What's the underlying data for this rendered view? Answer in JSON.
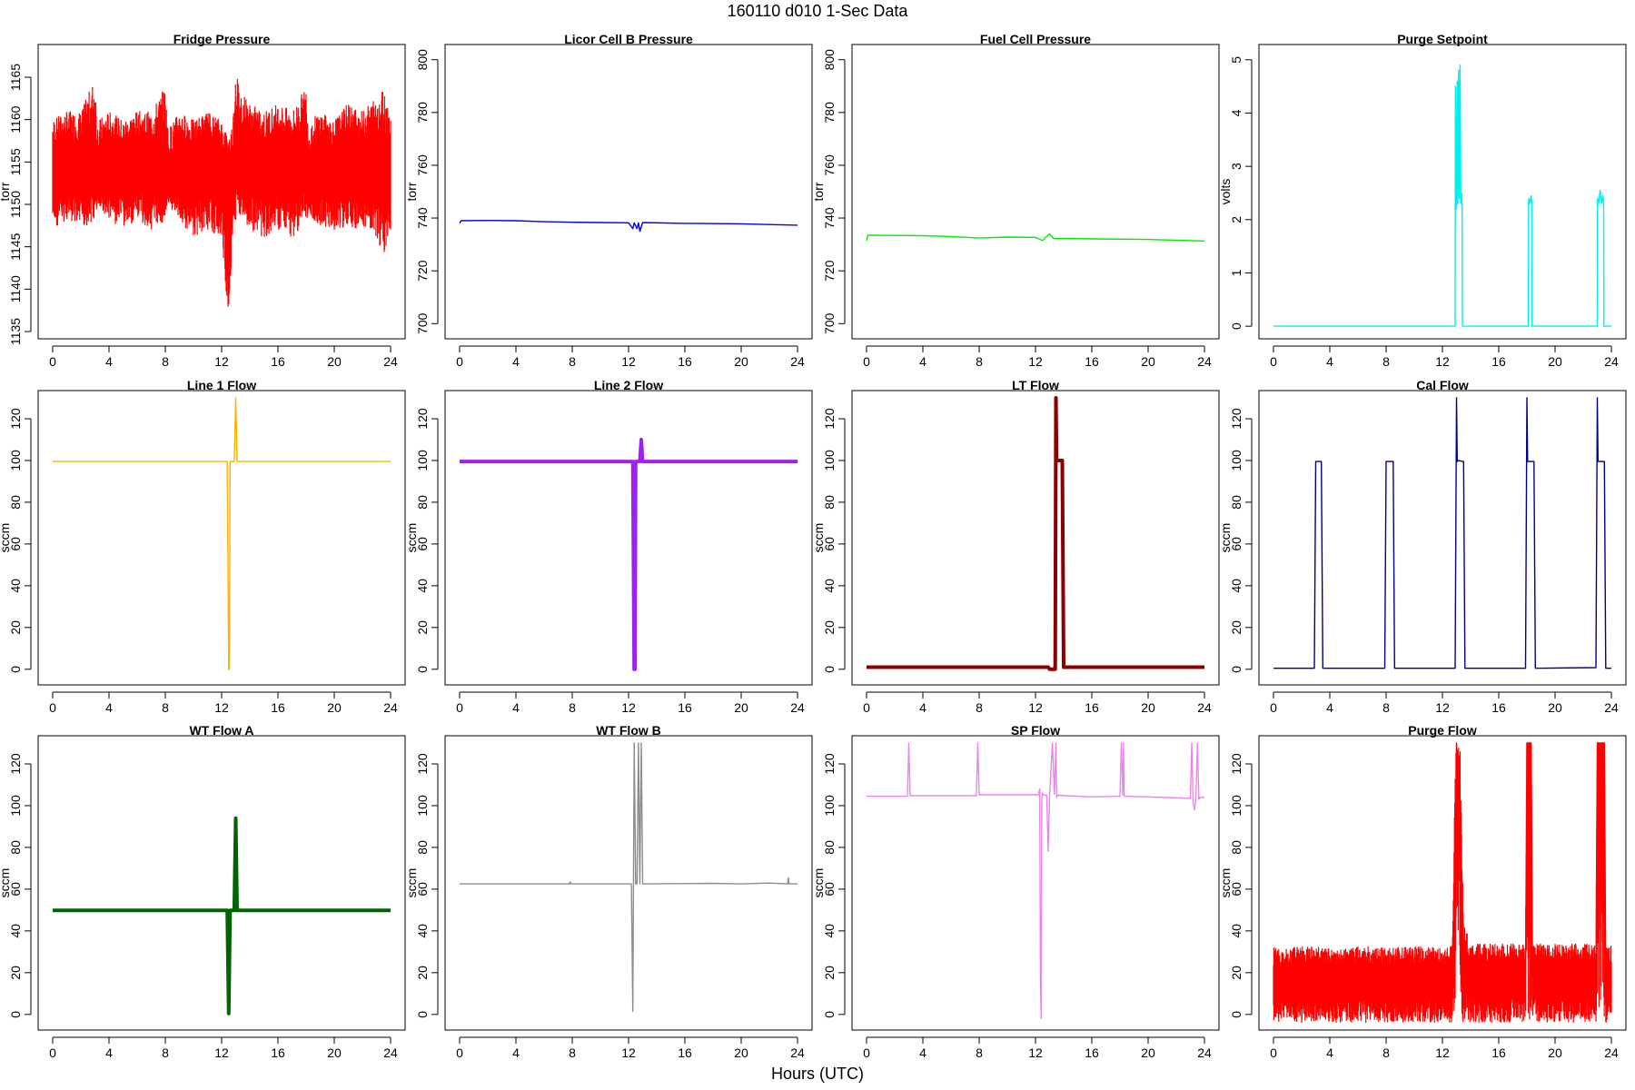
{
  "page": {
    "title": "160110    d010    1-Sec Data",
    "xlabel": "Hours (UTC)"
  },
  "colors": {
    "fridge": "#ff0000",
    "licor": "#0000ff",
    "fuel": "#00ee00",
    "purge_set": "#00eeee",
    "line1": "#ffb000",
    "line2": "#a020f0",
    "lt": "#8b0000",
    "cal": "#00008b",
    "wta": "#006400",
    "wtb": "#8c8c8c",
    "sp": "#ee82ee",
    "purge": "#ff0000"
  },
  "chart_data": [
    {
      "type": "line",
      "title": "Fridge Pressure",
      "xlabel": "",
      "ylabel": "torr",
      "xlim": [
        0,
        24
      ],
      "ylim": [
        1135,
        1168
      ],
      "yticks": [
        1135,
        1140,
        1145,
        1150,
        1155,
        1160,
        1165
      ],
      "xticks": [
        0,
        4,
        8,
        12,
        16,
        20,
        24
      ],
      "grid": false,
      "color": "fridge",
      "dense_band": true,
      "x": [
        0,
        1,
        2,
        3,
        3.2,
        4,
        5,
        6,
        7,
        8,
        8.2,
        9,
        10,
        11,
        12,
        12.5,
        12.8,
        13,
        13.2,
        14,
        15,
        16,
        17,
        18,
        18.2,
        19,
        20,
        21,
        22,
        23,
        23.5,
        24
      ],
      "y": [
        1154,
        1155,
        1154,
        1155,
        1152,
        1155,
        1154,
        1155,
        1154,
        1155,
        1152,
        1155,
        1154,
        1155,
        1154,
        1152,
        1153,
        1155,
        1156,
        1155,
        1154,
        1155,
        1154,
        1155,
        1151,
        1155,
        1154,
        1155,
        1154,
        1154,
        1154,
        1154
      ],
      "y_low": [
        1147,
        1148,
        1147,
        1148,
        1150,
        1148,
        1147,
        1148,
        1147,
        1148,
        1150,
        1148,
        1146,
        1147,
        1146,
        1136,
        1147,
        1148,
        1149,
        1147,
        1146,
        1147,
        1146,
        1148,
        1149,
        1147,
        1147,
        1147,
        1147,
        1146,
        1144,
        1147
      ],
      "y_high": [
        1160,
        1161,
        1161,
        1165,
        1160,
        1161,
        1160,
        1161,
        1161,
        1164,
        1159,
        1161,
        1160,
        1161,
        1160,
        1158,
        1160,
        1168,
        1164,
        1162,
        1161,
        1162,
        1161,
        1164,
        1160,
        1161,
        1160,
        1162,
        1161,
        1163,
        1164,
        1161
      ]
    },
    {
      "type": "line",
      "title": "Licor Cell B Pressure",
      "xlabel": "",
      "ylabel": "torr",
      "xlim": [
        0,
        24
      ],
      "ylim": [
        697,
        803
      ],
      "yticks": [
        700,
        720,
        740,
        760,
        780,
        800
      ],
      "xticks": [
        0,
        4,
        8,
        12,
        16,
        20,
        24
      ],
      "grid": false,
      "color": "licor",
      "x": [
        0,
        0.1,
        2,
        4,
        6,
        8,
        10,
        12,
        12.3,
        12.4,
        12.6,
        12.7,
        12.8,
        13,
        16,
        20,
        24
      ],
      "y": [
        738,
        739,
        739.1,
        739,
        738.6,
        738.4,
        738.3,
        738.2,
        736,
        738.2,
        736,
        738.2,
        735,
        738.3,
        738,
        737.8,
        737.3
      ]
    },
    {
      "type": "line",
      "title": "Fuel Cell Pressure",
      "xlabel": "",
      "ylabel": "torr",
      "xlim": [
        0,
        24
      ],
      "ylim": [
        697,
        803
      ],
      "yticks": [
        700,
        720,
        740,
        760,
        780,
        800
      ],
      "xticks": [
        0,
        4,
        8,
        12,
        16,
        20,
        24
      ],
      "grid": false,
      "color": "fuel",
      "x": [
        0,
        0.1,
        2,
        4,
        6,
        8,
        10,
        12,
        12.5,
        12.7,
        13,
        13.3,
        13.5,
        16,
        20,
        24
      ],
      "y": [
        731.5,
        733.5,
        733.4,
        733.3,
        733,
        732.4,
        732.8,
        732.7,
        731.5,
        732.6,
        734,
        732.2,
        732.3,
        732.1,
        731.9,
        731.3
      ]
    },
    {
      "type": "line",
      "title": "Purge Setpoint",
      "xlabel": "",
      "ylabel": "volts",
      "xlim": [
        0,
        24
      ],
      "ylim": [
        -0.1,
        5.15
      ],
      "yticks": [
        0,
        1,
        2,
        3,
        4,
        5
      ],
      "xticks": [
        0,
        4,
        8,
        12,
        16,
        20,
        24
      ],
      "grid": false,
      "color": "purge_set",
      "x": [
        0,
        12.9,
        12.92,
        13.0,
        13.05,
        13.1,
        13.15,
        13.2,
        13.25,
        13.3,
        13.35,
        13.4,
        13.42,
        18.1,
        18.12,
        18.2,
        18.3,
        18.35,
        18.37,
        23.0,
        23.02,
        23.1,
        23.2,
        23.3,
        23.4,
        23.45,
        23.47,
        24
      ],
      "y": [
        0,
        0,
        4.5,
        2.2,
        4.6,
        2.3,
        4.8,
        2.4,
        4.9,
        2.3,
        2.5,
        2.3,
        0,
        0,
        2.4,
        2.3,
        2.45,
        2.3,
        0,
        0,
        2.4,
        2.3,
        2.55,
        2.3,
        2.45,
        2.3,
        0,
        0
      ]
    },
    {
      "type": "line",
      "title": "Line 1 Flow",
      "xlabel": "",
      "ylabel": "sccm",
      "xlim": [
        0,
        24
      ],
      "ylim": [
        -4,
        130
      ],
      "yticks": [
        0,
        20,
        40,
        60,
        80,
        100,
        120
      ],
      "xticks": [
        0,
        4,
        8,
        12,
        16,
        20,
        24
      ],
      "grid": false,
      "color": "line1",
      "x": [
        0,
        12.3,
        12.4,
        12.5,
        12.55,
        12.6,
        12.9,
        13.0,
        13.1,
        24
      ],
      "y": [
        99.5,
        99.5,
        99.5,
        0,
        0,
        99.5,
        99.5,
        130,
        99.5,
        99.5
      ]
    },
    {
      "type": "line",
      "title": "Line 2 Flow",
      "xlabel": "",
      "ylabel": "sccm",
      "xlim": [
        0,
        24
      ],
      "ylim": [
        -4,
        130
      ],
      "yticks": [
        0,
        20,
        40,
        60,
        80,
        100,
        120
      ],
      "xticks": [
        0,
        4,
        8,
        12,
        16,
        20,
        24
      ],
      "grid": false,
      "color": "line2",
      "thick": true,
      "x": [
        0,
        12.2,
        12.3,
        12.4,
        12.45,
        12.5,
        12.8,
        12.9,
        13.0,
        13.1,
        24
      ],
      "y": [
        99.5,
        99.5,
        99.5,
        0,
        0,
        99.5,
        99.5,
        110,
        99.5,
        99.5,
        99.5
      ]
    },
    {
      "type": "line",
      "title": "LT Flow",
      "xlabel": "",
      "ylabel": "sccm",
      "xlim": [
        0,
        24
      ],
      "ylim": [
        -4,
        130
      ],
      "yticks": [
        0,
        20,
        40,
        60,
        80,
        100,
        120
      ],
      "xticks": [
        0,
        4,
        8,
        12,
        16,
        20,
        24
      ],
      "grid": false,
      "color": "lt",
      "thick": true,
      "x": [
        0,
        12.9,
        13.0,
        13.4,
        13.45,
        13.5,
        13.6,
        13.9,
        14.0,
        24
      ],
      "y": [
        1,
        1,
        0,
        0,
        130,
        100,
        100,
        100,
        1,
        1
      ]
    },
    {
      "type": "line",
      "title": "Cal Flow",
      "xlabel": "",
      "ylabel": "sccm",
      "xlim": [
        0,
        24
      ],
      "ylim": [
        -4,
        130
      ],
      "yticks": [
        0,
        20,
        40,
        60,
        80,
        100,
        120
      ],
      "xticks": [
        0,
        4,
        8,
        12,
        16,
        20,
        24
      ],
      "grid": false,
      "color": "cal",
      "x": [
        0,
        2.9,
        3.0,
        3.4,
        3.5,
        7.9,
        8.0,
        8.5,
        8.6,
        12.9,
        13.0,
        13.05,
        13.1,
        13.5,
        13.6,
        17.9,
        18.0,
        18.05,
        18.1,
        18.5,
        18.6,
        22.9,
        23.0,
        23.05,
        23.1,
        23.5,
        23.6,
        24
      ],
      "y": [
        0.5,
        0.5,
        99.5,
        99.5,
        0.5,
        0.5,
        99.5,
        99.5,
        0.5,
        0.5,
        130,
        99.5,
        100,
        99.5,
        0.5,
        0.5,
        130,
        99.5,
        99.5,
        99.5,
        0.5,
        0.8,
        130,
        99.5,
        99.5,
        99.5,
        0.5,
        0.5
      ]
    },
    {
      "type": "line",
      "title": "WT Flow A",
      "xlabel": "",
      "ylabel": "sccm",
      "xlim": [
        0,
        24
      ],
      "ylim": [
        -4,
        130
      ],
      "yticks": [
        0,
        20,
        40,
        60,
        80,
        100,
        120
      ],
      "xticks": [
        0,
        4,
        8,
        12,
        16,
        20,
        24
      ],
      "grid": false,
      "color": "wta",
      "thick": true,
      "x": [
        0,
        12.3,
        12.4,
        12.5,
        12.6,
        12.9,
        13.0,
        13.1,
        24
      ],
      "y": [
        49.8,
        49.8,
        49.8,
        0.5,
        49.8,
        49.8,
        94,
        49.8,
        49.8
      ]
    },
    {
      "type": "line",
      "title": "WT Flow B",
      "xlabel": "",
      "ylabel": "sccm",
      "xlim": [
        0,
        24
      ],
      "ylim": [
        -4,
        130
      ],
      "yticks": [
        0,
        20,
        40,
        60,
        80,
        100,
        120
      ],
      "xticks": [
        0,
        4,
        8,
        12,
        16,
        20,
        24
      ],
      "grid": false,
      "color": "wtb",
      "x": [
        0,
        7.8,
        7.85,
        7.9,
        12.1,
        12.2,
        12.3,
        12.4,
        12.5,
        12.6,
        12.7,
        12.8,
        12.9,
        13.0,
        13.1,
        18,
        20,
        22,
        23.3,
        23.35,
        23.4,
        24
      ],
      "y": [
        62.5,
        62.5,
        63.5,
        62.5,
        62.5,
        62.5,
        1.5,
        130,
        62.5,
        62.5,
        130,
        62.5,
        130,
        62.5,
        62.5,
        62.8,
        62.5,
        62.9,
        62.5,
        65.5,
        62.5,
        62.5
      ]
    },
    {
      "type": "line",
      "title": "SP Flow",
      "xlabel": "",
      "ylabel": "sccm",
      "xlim": [
        0,
        24
      ],
      "ylim": [
        -4,
        130
      ],
      "yticks": [
        0,
        20,
        40,
        60,
        80,
        100,
        120
      ],
      "xticks": [
        0,
        4,
        8,
        12,
        16,
        20,
        24
      ],
      "grid": false,
      "color": "sp",
      "x": [
        0,
        2.9,
        3.0,
        3.1,
        3.2,
        7.8,
        7.9,
        8.0,
        8.4,
        8.5,
        12.2,
        12.3,
        12.35,
        12.4,
        12.45,
        12.5,
        12.6,
        12.8,
        12.9,
        13.0,
        13.2,
        13.35,
        13.45,
        13.5,
        13.6,
        16,
        18,
        18.1,
        18.2,
        18.25,
        18.3,
        20,
        23.0,
        23.1,
        23.2,
        23.3,
        23.4,
        23.5,
        23.6,
        23.7,
        24
      ],
      "y": [
        104.5,
        104.5,
        130,
        104.8,
        104.8,
        104.8,
        130,
        105.2,
        105.2,
        105.2,
        105.2,
        108,
        20,
        -2,
        104,
        106,
        105,
        105,
        78,
        105,
        130,
        105.5,
        130,
        104,
        105,
        104.2,
        104.5,
        130,
        105,
        130,
        104.5,
        104.2,
        103.5,
        130,
        101,
        98,
        105,
        130,
        103,
        104,
        104
      ]
    },
    {
      "type": "line",
      "title": "Purge Flow",
      "xlabel": "",
      "ylabel": "sccm",
      "xlim": [
        0,
        24
      ],
      "ylim": [
        -4,
        130
      ],
      "yticks": [
        0,
        20,
        40,
        60,
        80,
        100,
        120
      ],
      "xticks": [
        0,
        4,
        8,
        12,
        16,
        20,
        24
      ],
      "grid": false,
      "color": "purge",
      "dense_band": true,
      "x": [
        0,
        2,
        4,
        6,
        8,
        10,
        12,
        12.7,
        12.9,
        13.0,
        13.2,
        13.3,
        13.5,
        14,
        16,
        17.9,
        18.0,
        18.3,
        18.4,
        20,
        22,
        22.9,
        23.0,
        23.5,
        23.6,
        24
      ],
      "y": [
        15,
        16,
        15,
        16,
        15,
        16,
        15,
        16,
        70,
        130,
        100,
        60,
        25,
        18,
        18,
        18,
        130,
        130,
        18,
        18,
        18,
        18,
        130,
        130,
        18,
        18
      ],
      "y_low": [
        -4,
        -4,
        -4,
        -4,
        -4,
        -4,
        -4,
        -4,
        -4,
        40,
        40,
        -4,
        -4,
        -4,
        -4,
        -4,
        -4,
        -4,
        -4,
        -4,
        -4,
        -4,
        -4,
        -4,
        -4,
        -4
      ],
      "y_high": [
        32,
        33,
        32,
        33,
        32,
        33,
        32,
        33,
        130,
        130,
        130,
        130,
        46,
        34,
        34,
        34,
        130,
        130,
        34,
        34,
        34,
        34,
        130,
        130,
        34,
        33
      ]
    }
  ]
}
